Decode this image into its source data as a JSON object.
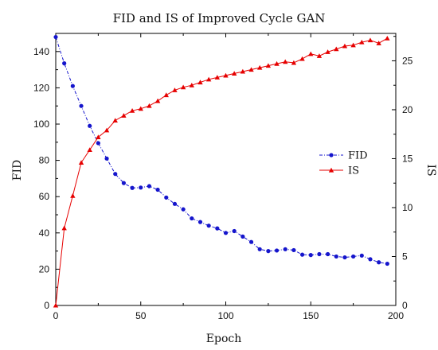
{
  "chart_data": {
    "type": "line",
    "title": "FID and IS of Improved Cycle GAN",
    "xlabel": "Epoch",
    "ylabel_left": "FID",
    "ylabel_right": "IS",
    "xlim": [
      0,
      200
    ],
    "ylim_left": [
      0,
      150
    ],
    "ylim_right": [
      0,
      27.8
    ],
    "x_ticks": [
      0,
      50,
      100,
      150,
      200
    ],
    "y_left_ticks": [
      0,
      20,
      40,
      60,
      80,
      100,
      120,
      140
    ],
    "y_right_ticks": [
      0,
      5,
      10,
      15,
      20,
      25
    ],
    "grid": false,
    "legend_position": "center-right",
    "x": [
      0,
      5,
      10,
      15,
      20,
      25,
      30,
      35,
      40,
      45,
      50,
      55,
      60,
      65,
      70,
      75,
      80,
      85,
      90,
      95,
      100,
      105,
      110,
      115,
      120,
      125,
      130,
      135,
      140,
      145,
      150,
      155,
      160,
      165,
      170,
      175,
      180,
      185,
      190,
      195
    ],
    "series": [
      {
        "name": "FID",
        "axis": "left",
        "color": "#1515cc",
        "line_style": "dash-dot",
        "marker": "circle",
        "values": [
          148,
          133.5,
          121,
          110,
          99,
          89.5,
          81,
          72.5,
          67.5,
          64.8,
          65,
          65.8,
          63.8,
          59.5,
          56,
          53,
          48,
          46,
          44,
          42.5,
          40,
          41,
          38,
          35,
          31,
          30,
          30.3,
          31,
          30.5,
          28,
          27.8,
          28.3,
          28.3,
          27,
          26.5,
          27,
          27.5,
          25.5,
          23.8,
          23
        ]
      },
      {
        "name": "IS",
        "axis": "right",
        "color": "#e60000",
        "line_style": "solid",
        "marker": "triangle",
        "values": [
          0,
          7.9,
          11.2,
          14.6,
          15.9,
          17.2,
          17.9,
          18.9,
          19.4,
          19.9,
          20.1,
          20.4,
          20.9,
          21.5,
          22,
          22.3,
          22.5,
          22.8,
          23.1,
          23.3,
          23.5,
          23.7,
          23.9,
          24.1,
          24.3,
          24.5,
          24.7,
          24.9,
          24.8,
          25.2,
          25.7,
          25.5,
          25.9,
          26.2,
          26.5,
          26.6,
          26.9,
          27.1,
          26.8,
          27.3
        ]
      }
    ]
  }
}
